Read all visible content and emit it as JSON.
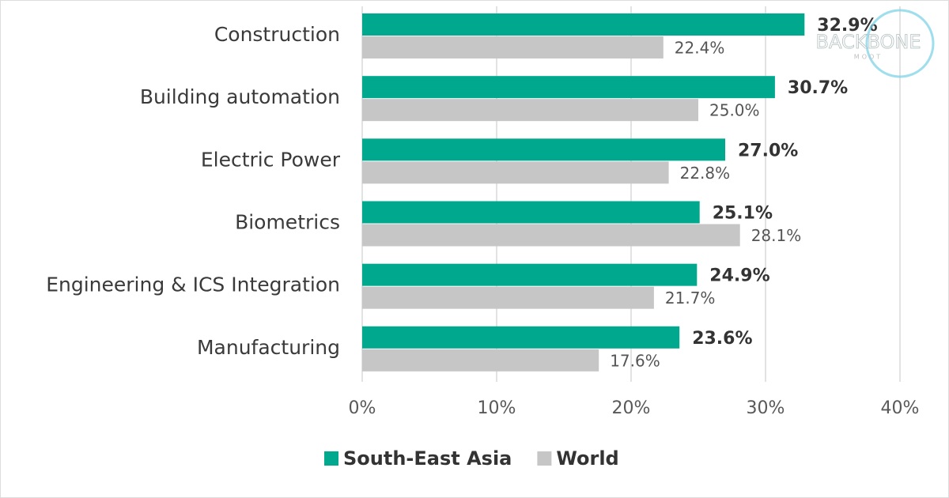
{
  "chart_data": {
    "type": "bar",
    "orientation": "horizontal",
    "categories": [
      "Construction",
      "Building automation",
      "Electric Power",
      "Biometrics",
      "Engineering & ICS Integration",
      "Manufacturing"
    ],
    "series": [
      {
        "name": "South-East Asia",
        "color": "#00a88e",
        "values": [
          32.9,
          30.7,
          27.0,
          25.1,
          24.9,
          23.6
        ],
        "value_labels": [
          "32.9%",
          "30.7%",
          "27.0%",
          "25.1%",
          "24.9%",
          "23.6%"
        ]
      },
      {
        "name": "World",
        "color": "#c6c6c6",
        "values": [
          22.4,
          25.0,
          22.8,
          28.1,
          21.7,
          17.6
        ],
        "value_labels": [
          "22.4%",
          "25.0%",
          "22.8%",
          "28.1%",
          "21.7%",
          "17.6%"
        ]
      }
    ],
    "xlim": [
      0,
      40
    ],
    "xticks": [
      {
        "value": 0,
        "label": "0%"
      },
      {
        "value": 10,
        "label": "10%"
      },
      {
        "value": 20,
        "label": "20%"
      },
      {
        "value": 30,
        "label": "30%"
      },
      {
        "value": 40,
        "label": "40%"
      }
    ],
    "grid": true,
    "legend": "bottom",
    "watermark": "BACKBONE",
    "watermark_sub": "MOOT"
  }
}
